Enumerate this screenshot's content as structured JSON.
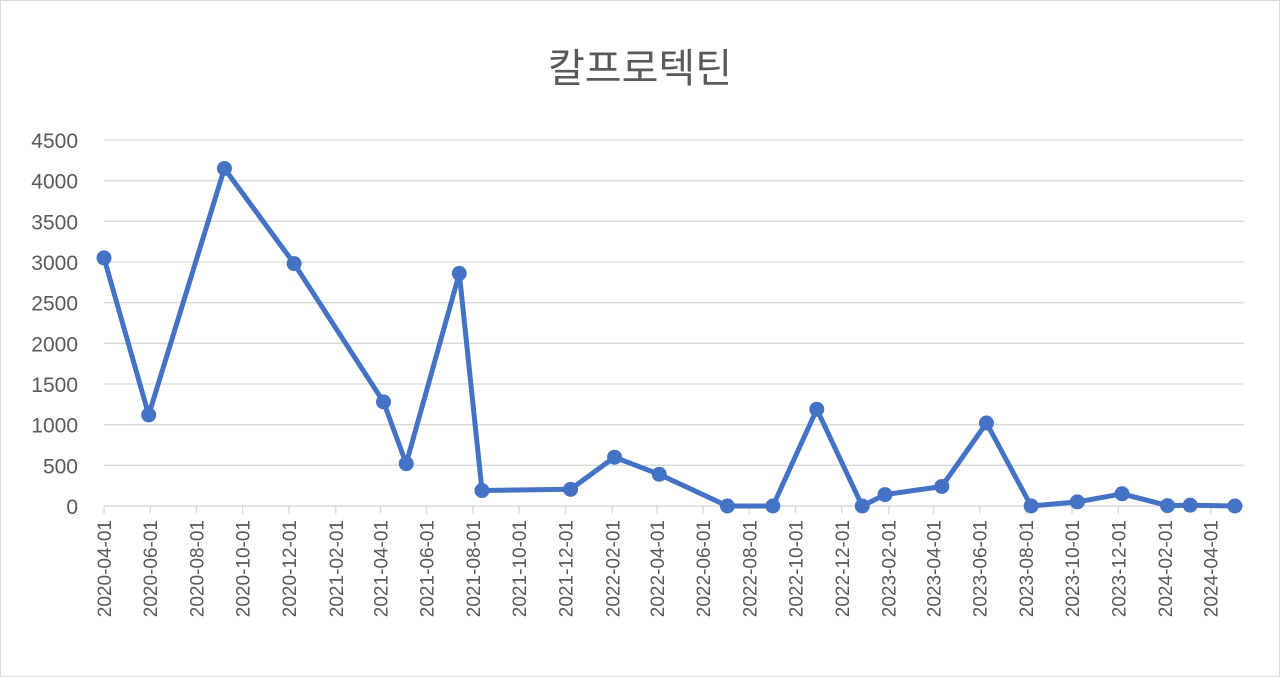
{
  "chart_data": {
    "type": "line",
    "title": "칼프로텍틴",
    "xlabel": "",
    "ylabel": "",
    "ylim": [
      0,
      4500
    ],
    "y_ticks": [
      "0",
      "500",
      "1000",
      "1500",
      "2000",
      "2500",
      "3000",
      "3500",
      "4000",
      "4500"
    ],
    "x_range": [
      "2020-04-01",
      "2024-05-15"
    ],
    "x_ticks": [
      "2020-04-01",
      "2020-06-01",
      "2020-08-01",
      "2020-10-01",
      "2020-12-01",
      "2021-02-01",
      "2021-04-01",
      "2021-06-01",
      "2021-08-01",
      "2021-10-01",
      "2021-12-01",
      "2022-02-01",
      "2022-04-01",
      "2022-06-01",
      "2022-08-01",
      "2022-10-01",
      "2022-12-01",
      "2023-02-01",
      "2023-04-01",
      "2023-06-01",
      "2023-08-01",
      "2023-10-01",
      "2023-12-01",
      "2024-02-01",
      "2024-04-01"
    ],
    "grid": true,
    "legend": "none",
    "color": "#4472C4",
    "series": [
      {
        "points": [
          {
            "x": "2020-04-01",
            "y": 3050
          },
          {
            "x": "2020-05-30",
            "y": 1120
          },
          {
            "x": "2020-09-07",
            "y": 4150
          },
          {
            "x": "2020-12-08",
            "y": 2980
          },
          {
            "x": "2021-04-05",
            "y": 1280
          },
          {
            "x": "2021-05-05",
            "y": 520
          },
          {
            "x": "2021-07-14",
            "y": 2860
          },
          {
            "x": "2021-08-13",
            "y": 190
          },
          {
            "x": "2021-12-08",
            "y": 205
          },
          {
            "x": "2022-02-04",
            "y": 600
          },
          {
            "x": "2022-04-04",
            "y": 390
          },
          {
            "x": "2022-07-03",
            "y": 0
          },
          {
            "x": "2022-09-01",
            "y": 0
          },
          {
            "x": "2022-10-29",
            "y": 1190
          },
          {
            "x": "2022-12-28",
            "y": 0
          },
          {
            "x": "2023-01-27",
            "y": 140
          },
          {
            "x": "2023-04-12",
            "y": 240
          },
          {
            "x": "2023-06-10",
            "y": 1020
          },
          {
            "x": "2023-08-08",
            "y": 0
          },
          {
            "x": "2023-10-08",
            "y": 50
          },
          {
            "x": "2023-12-06",
            "y": 150
          },
          {
            "x": "2024-02-04",
            "y": 5
          },
          {
            "x": "2024-03-05",
            "y": 10
          },
          {
            "x": "2024-05-03",
            "y": 0
          }
        ]
      }
    ]
  }
}
